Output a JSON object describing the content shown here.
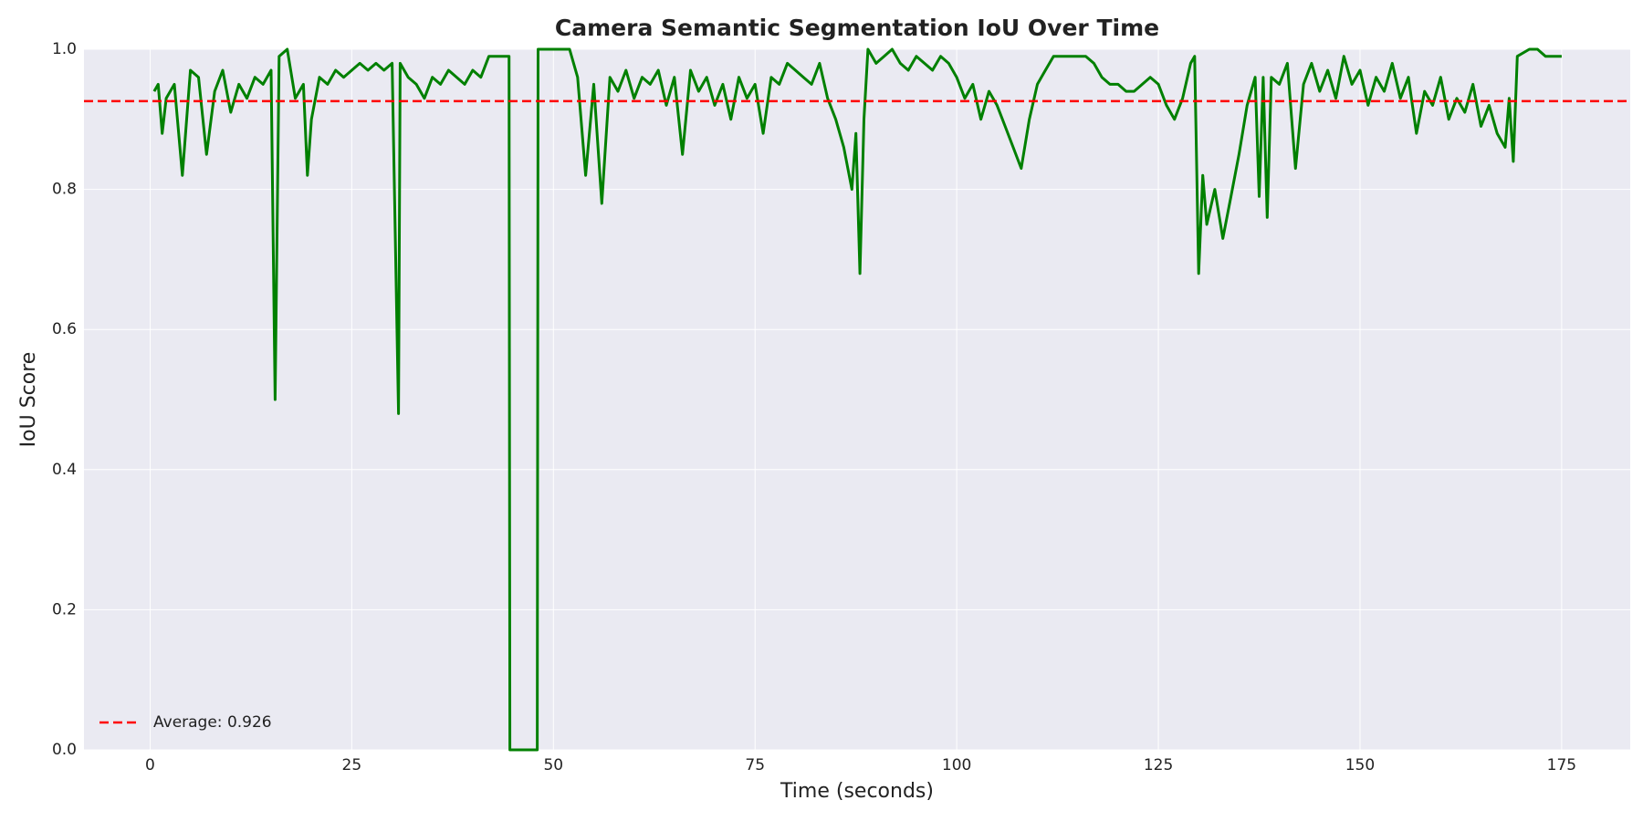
{
  "chart_data": {
    "type": "line",
    "title": "Camera Semantic Segmentation IoU Over Time",
    "xlabel": "Time (seconds)",
    "ylabel": "IoU Score",
    "x": [
      0.5,
      1,
      1.5,
      2,
      3,
      4,
      5,
      6,
      7,
      8,
      9,
      10,
      11,
      12,
      13,
      14,
      15,
      15.5,
      16,
      17,
      18,
      19,
      19.5,
      20,
      21,
      22,
      23,
      24,
      25,
      26,
      27,
      28,
      29,
      30,
      30.8,
      31,
      32,
      33,
      34,
      35,
      36,
      37,
      38,
      39,
      40,
      41,
      42,
      43,
      44,
      44.5,
      44.6,
      48,
      48.1,
      52,
      53,
      54,
      55,
      56,
      57,
      58,
      59,
      60,
      61,
      62,
      63,
      64,
      65,
      66,
      67,
      68,
      69,
      70,
      71,
      72,
      73,
      74,
      75,
      76,
      77,
      78,
      79,
      80,
      81,
      82,
      83,
      84,
      85,
      86,
      87,
      87.5,
      88,
      88.5,
      89,
      90,
      91,
      92,
      93,
      94,
      95,
      96,
      97,
      98,
      99,
      100,
      101,
      102,
      103,
      104,
      105,
      106,
      107,
      108,
      109,
      110,
      111,
      112,
      113,
      114,
      115,
      116,
      117,
      118,
      119,
      120,
      121,
      122,
      123,
      124,
      125,
      126,
      127,
      128,
      129,
      129.5,
      130,
      130.5,
      131,
      132,
      133,
      134,
      135,
      136,
      137,
      137.5,
      138,
      138.5,
      139,
      140,
      141,
      142,
      143,
      144,
      145,
      146,
      147,
      148,
      149,
      150,
      151,
      152,
      153,
      154,
      155,
      156,
      157,
      158,
      159,
      160,
      161,
      162,
      163,
      164,
      165,
      166,
      167,
      168,
      168.5,
      169,
      169.5,
      171,
      172,
      173,
      174,
      175
    ],
    "series": [
      {
        "color": "#008000",
        "values": [
          0.94,
          0.95,
          0.88,
          0.93,
          0.95,
          0.82,
          0.97,
          0.96,
          0.85,
          0.94,
          0.97,
          0.91,
          0.95,
          0.93,
          0.96,
          0.95,
          0.97,
          0.5,
          0.99,
          1.0,
          0.93,
          0.95,
          0.82,
          0.9,
          0.96,
          0.95,
          0.97,
          0.96,
          0.97,
          0.98,
          0.97,
          0.98,
          0.97,
          0.98,
          0.48,
          0.98,
          0.96,
          0.95,
          0.93,
          0.96,
          0.95,
          0.97,
          0.96,
          0.95,
          0.97,
          0.96,
          0.99,
          0.99,
          0.99,
          0.99,
          0,
          0,
          1.0,
          1.0,
          0.96,
          0.82,
          0.95,
          0.78,
          0.96,
          0.94,
          0.97,
          0.93,
          0.96,
          0.95,
          0.97,
          0.92,
          0.96,
          0.85,
          0.97,
          0.94,
          0.96,
          0.92,
          0.95,
          0.9,
          0.96,
          0.93,
          0.95,
          0.88,
          0.96,
          0.95,
          0.98,
          0.97,
          0.96,
          0.95,
          0.98,
          0.93,
          0.9,
          0.86,
          0.8,
          0.88,
          0.68,
          0.9,
          1.0,
          0.98,
          0.99,
          1.0,
          0.98,
          0.97,
          0.99,
          0.98,
          0.97,
          0.99,
          0.98,
          0.96,
          0.93,
          0.95,
          0.9,
          0.94,
          0.92,
          0.89,
          0.86,
          0.83,
          0.9,
          0.95,
          0.97,
          0.99,
          0.99,
          0.99,
          0.99,
          0.99,
          0.98,
          0.96,
          0.95,
          0.95,
          0.94,
          0.94,
          0.95,
          0.96,
          0.95,
          0.92,
          0.9,
          0.93,
          0.98,
          0.99,
          0.68,
          0.82,
          0.75,
          0.8,
          0.73,
          0.79,
          0.85,
          0.92,
          0.96,
          0.79,
          0.96,
          0.76,
          0.96,
          0.95,
          0.98,
          0.83,
          0.95,
          0.98,
          0.94,
          0.97,
          0.93,
          0.99,
          0.95,
          0.97,
          0.92,
          0.96,
          0.94,
          0.98,
          0.93,
          0.96,
          0.88,
          0.94,
          0.92,
          0.96,
          0.9,
          0.93,
          0.91,
          0.95,
          0.89,
          0.92,
          0.88,
          0.86,
          0.93,
          0.84,
          0.99,
          1.0,
          1.0,
          0.99,
          0.99,
          0.99
        ]
      }
    ],
    "average": {
      "name": "Average: 0.926",
      "value": 0.926,
      "color": "#ff0000"
    },
    "xlim": [
      -8.2,
      183.5
    ],
    "xticks": [
      0,
      25,
      50,
      75,
      100,
      125,
      150,
      175
    ],
    "ylim": [
      0,
      1
    ],
    "yticks": [
      {
        "value": 0,
        "label": "0.0"
      },
      0.2,
      0.4,
      0.6,
      0.8,
      {
        "value": 1,
        "label": "1.0"
      }
    ],
    "grid": true,
    "legend": "lower left"
  }
}
